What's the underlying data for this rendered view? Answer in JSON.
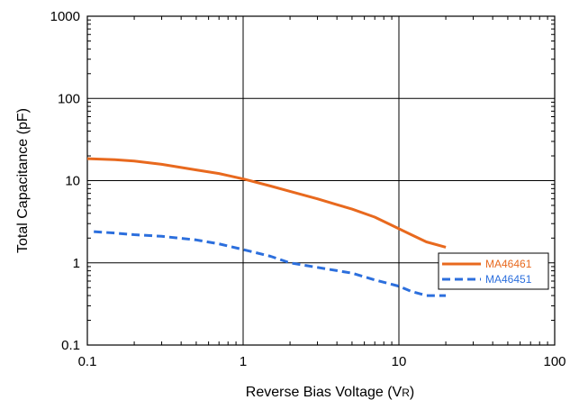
{
  "chart_data": {
    "type": "line",
    "xlabel": "Reverse Bias Voltage (V",
    "xlabel_sub": "R",
    "xlabel_close": ")",
    "ylabel": "Total Capacitance (pF)",
    "x_scale": "log",
    "y_scale": "log",
    "xlim": [
      0.1,
      100
    ],
    "ylim": [
      0.1,
      1000
    ],
    "x_ticks": [
      0.1,
      1,
      10,
      100
    ],
    "x_tick_labels": [
      "0.1",
      "1",
      "10",
      "100"
    ],
    "y_ticks": [
      0.1,
      1,
      10,
      100,
      1000
    ],
    "y_tick_labels": [
      "0.1",
      "1",
      "10",
      "100",
      "1000"
    ],
    "grid": true,
    "legend_position": "bottom-right",
    "series": [
      {
        "name": "MA46461",
        "color": "#E8691E",
        "style": "solid",
        "x": [
          0.1,
          0.15,
          0.2,
          0.3,
          0.5,
          0.7,
          1,
          1.5,
          2,
          3,
          4,
          5,
          7,
          10,
          12,
          15,
          20
        ],
        "y": [
          18.5,
          18.0,
          17.3,
          15.8,
          13.5,
          12.2,
          10.5,
          8.6,
          7.4,
          6.0,
          5.1,
          4.5,
          3.6,
          2.6,
          2.2,
          1.8,
          1.55
        ]
      },
      {
        "name": "MA46451",
        "color": "#2C6FDD",
        "style": "dashed",
        "x": [
          0.11,
          0.15,
          0.2,
          0.3,
          0.5,
          0.7,
          1,
          1.5,
          2,
          3,
          5,
          7,
          10,
          12,
          15,
          20
        ],
        "y": [
          2.4,
          2.3,
          2.2,
          2.1,
          1.9,
          1.7,
          1.45,
          1.2,
          1.0,
          0.88,
          0.75,
          0.62,
          0.52,
          0.45,
          0.4,
          0.4
        ]
      }
    ]
  }
}
